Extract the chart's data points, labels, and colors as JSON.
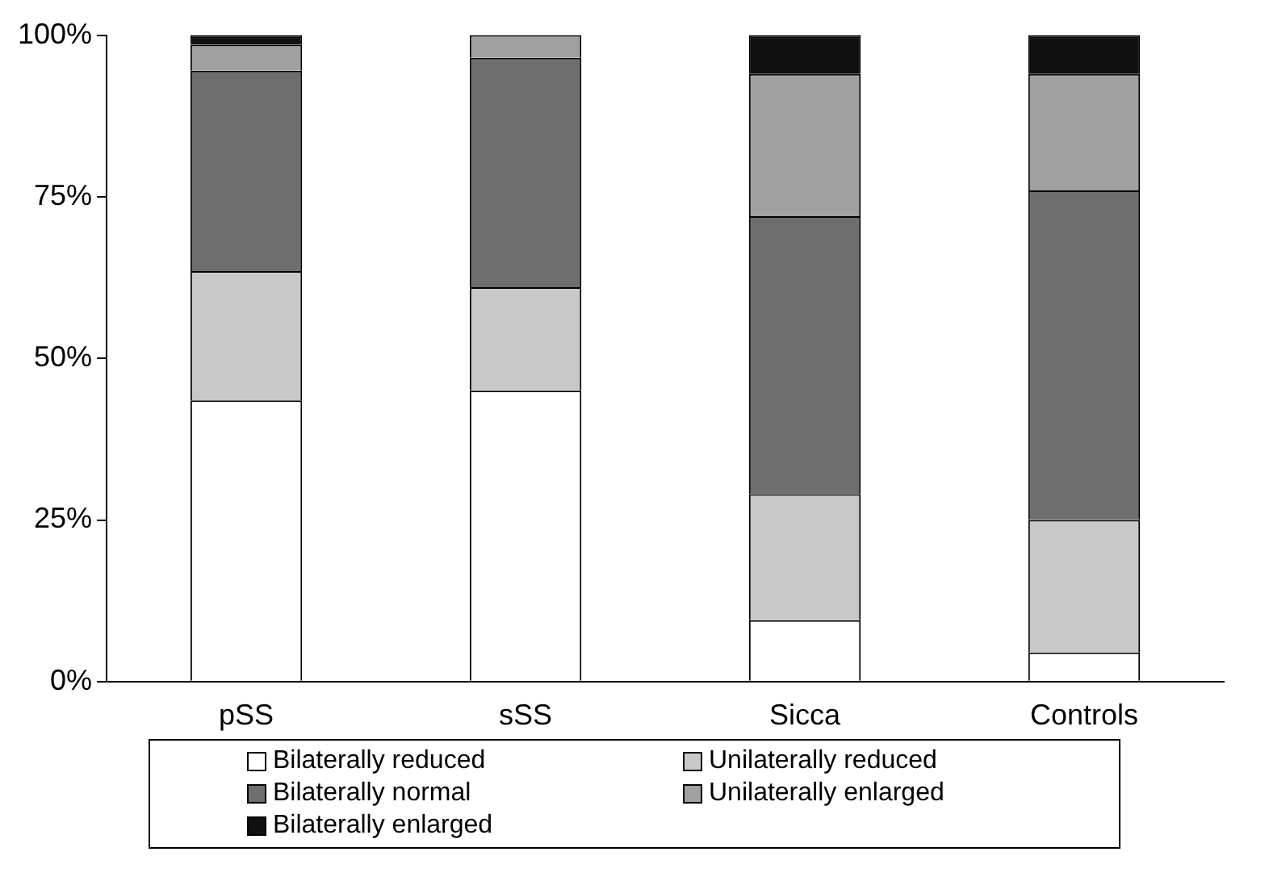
{
  "chart_data": {
    "type": "bar",
    "stacked": true,
    "categories": [
      "pSS",
      "sSS",
      "Sicca",
      "Controls"
    ],
    "series": [
      {
        "name": "Bilaterally reduced",
        "color": "#ffffff",
        "values": [
          43.5,
          45,
          9.5,
          4.5
        ]
      },
      {
        "name": "Unilaterally reduced",
        "color": "#c8c8c8",
        "values": [
          20,
          16,
          19.5,
          20.5
        ]
      },
      {
        "name": "Bilaterally normal",
        "color": "#6e6e6e",
        "values": [
          31,
          35.5,
          43,
          51
        ]
      },
      {
        "name": "Unilaterally enlarged",
        "color": "#a0a0a0",
        "values": [
          4,
          3.5,
          22,
          18
        ]
      },
      {
        "name": "Bilaterally enlarged",
        "color": "#111111",
        "values": [
          1.5,
          0,
          6,
          6
        ]
      }
    ],
    "ylim": [
      0,
      100
    ],
    "yticks": [
      {
        "value": 0,
        "label": "0%"
      },
      {
        "value": 25,
        "label": "25%"
      },
      {
        "value": 50,
        "label": "50%"
      },
      {
        "value": 75,
        "label": "75%"
      },
      {
        "value": 100,
        "label": "100%"
      }
    ],
    "grid": false,
    "legend": "bottom"
  }
}
